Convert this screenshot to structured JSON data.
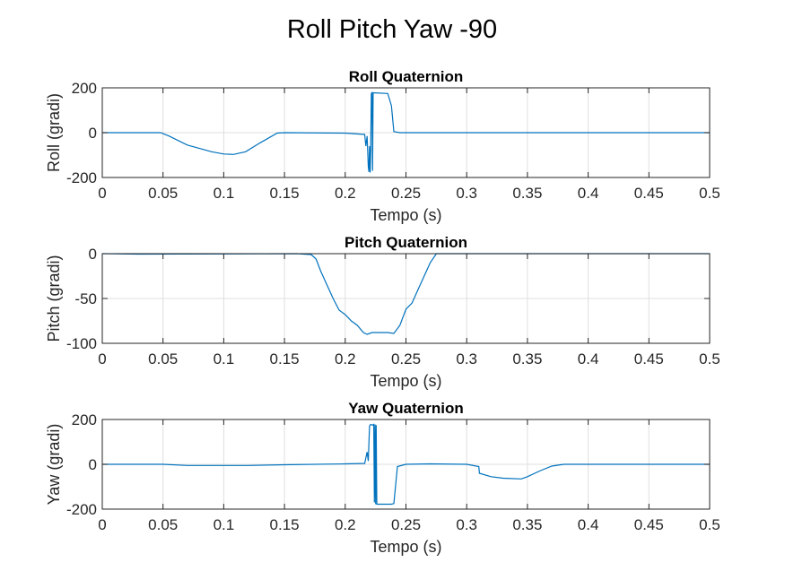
{
  "figure": {
    "title": "Roll Pitch Yaw -90",
    "line_color": "#0072bd",
    "grid_color": "#dfdfdf",
    "axis_color": "#262626"
  },
  "chart_data": [
    {
      "type": "line",
      "title": "Roll Quaternion",
      "xlabel": "Tempo (s)",
      "ylabel": "Roll (gradi)",
      "xlim": [
        0,
        0.5
      ],
      "ylim": [
        -200,
        200
      ],
      "xticks": [
        "0",
        "0.05",
        "0.1",
        "0.15",
        "0.2",
        "0.25",
        "0.3",
        "0.35",
        "0.4",
        "0.45",
        "0.5"
      ],
      "yticks": [
        "200",
        "0",
        "-200"
      ],
      "grid": true,
      "series": [
        {
          "name": "Roll",
          "x": [
            0,
            0.048,
            0.055,
            0.07,
            0.09,
            0.1,
            0.108,
            0.118,
            0.13,
            0.144,
            0.15,
            0.2,
            0.216,
            0.217,
            0.218,
            0.219,
            0.2195,
            0.22,
            0.2205,
            0.221,
            0.2215,
            0.222,
            0.2225,
            0.223,
            0.235,
            0.238,
            0.24,
            0.245,
            0.3,
            0.4,
            0.5
          ],
          "values": [
            0,
            0,
            -15,
            -55,
            -85,
            -95,
            -97,
            -85,
            -45,
            -2,
            0,
            -2,
            -8,
            -60,
            -15,
            -150,
            -175,
            -60,
            -178,
            -80,
            175,
            178,
            -170,
            178,
            175,
            120,
            5,
            0,
            0,
            0,
            0
          ]
        }
      ]
    },
    {
      "type": "line",
      "title": "Pitch Quaternion",
      "xlabel": "Tempo (s)",
      "ylabel": "Pitch (gradi)",
      "xlim": [
        0,
        0.5
      ],
      "ylim": [
        -100,
        0
      ],
      "xticks": [
        "0",
        "0.05",
        "0.1",
        "0.15",
        "0.2",
        "0.25",
        "0.3",
        "0.35",
        "0.4",
        "0.45",
        "0.5"
      ],
      "yticks": [
        "0",
        "-50",
        "-100"
      ],
      "grid": true,
      "series": [
        {
          "name": "Pitch",
          "x": [
            0,
            0.03,
            0.16,
            0.172,
            0.176,
            0.18,
            0.185,
            0.19,
            0.195,
            0.2,
            0.205,
            0.21,
            0.215,
            0.218,
            0.222,
            0.23,
            0.235,
            0.24,
            0.245,
            0.25,
            0.255,
            0.26,
            0.265,
            0.27,
            0.275,
            0.3,
            0.5
          ],
          "values": [
            0,
            -0.5,
            0,
            -1,
            -6,
            -20,
            -35,
            -50,
            -63,
            -68,
            -75,
            -80,
            -88,
            -90,
            -88,
            -88,
            -88,
            -89,
            -80,
            -62,
            -55,
            -40,
            -25,
            -10,
            0,
            0,
            0
          ]
        }
      ]
    },
    {
      "type": "line",
      "title": "Yaw Quaternion",
      "xlabel": "Tempo (s)",
      "ylabel": "Yaw (gradi)",
      "xlim": [
        0,
        0.5
      ],
      "ylim": [
        -200,
        200
      ],
      "xticks": [
        "0",
        "0.05",
        "0.1",
        "0.15",
        "0.2",
        "0.25",
        "0.3",
        "0.35",
        "0.4",
        "0.45",
        "0.5"
      ],
      "yticks": [
        "200",
        "0",
        "-200"
      ],
      "grid": true,
      "series": [
        {
          "name": "Yaw",
          "x": [
            0,
            0.05,
            0.07,
            0.12,
            0.15,
            0.2,
            0.216,
            0.218,
            0.219,
            0.22,
            0.221,
            0.2225,
            0.2235,
            0.224,
            0.2245,
            0.225,
            0.2255,
            0.226,
            0.238,
            0.24,
            0.243,
            0.25,
            0.27,
            0.3,
            0.31,
            0.3105,
            0.32,
            0.33,
            0.345,
            0.35,
            0.36,
            0.37,
            0.38,
            0.4,
            0.5
          ],
          "values": [
            0,
            0,
            -5,
            -5,
            -2,
            2,
            4,
            55,
            15,
            170,
            178,
            175,
            178,
            -170,
            178,
            -178,
            175,
            -178,
            -178,
            -175,
            -10,
            0,
            2,
            0,
            -10,
            -40,
            -55,
            -62,
            -65,
            -55,
            -30,
            -8,
            0,
            0,
            0
          ]
        }
      ]
    }
  ]
}
